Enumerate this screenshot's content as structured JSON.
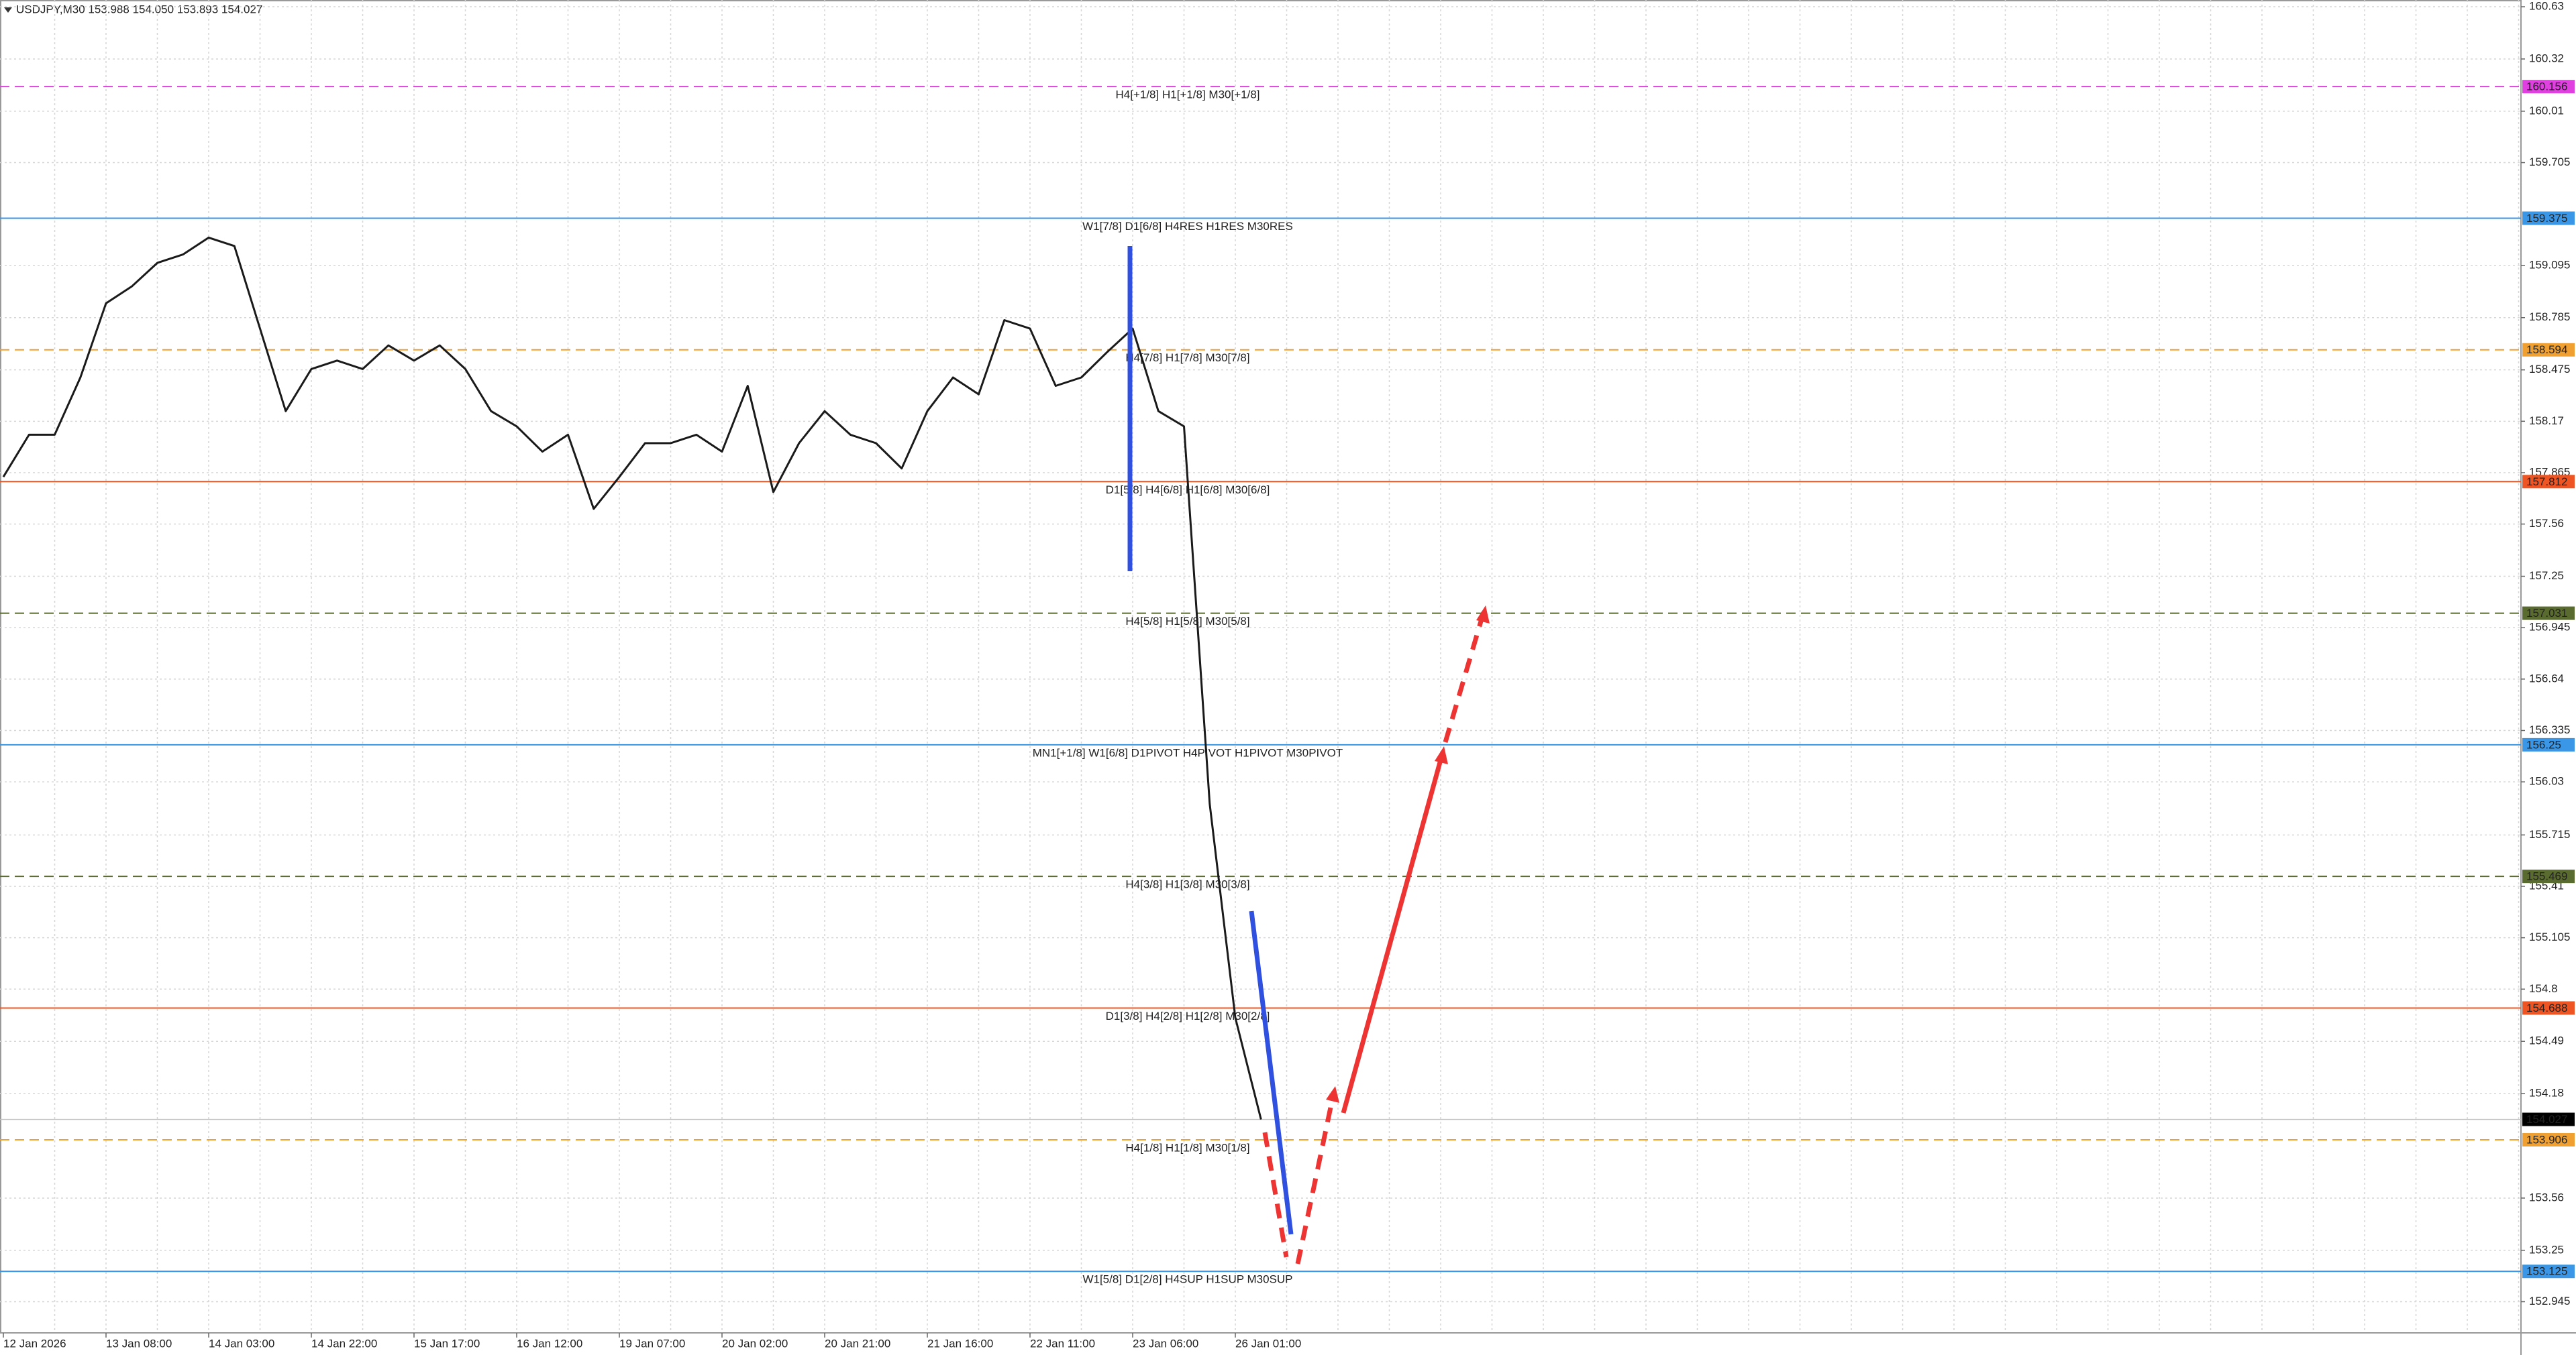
{
  "chart_data": {
    "type": "line",
    "title": "USDJPY,M30  153.988 154.050 153.893 154.027",
    "categories": [
      "12 Jan 2026",
      null,
      null,
      null,
      "13 Jan 08:00",
      null,
      null,
      null,
      "14 Jan 03:00",
      null,
      null,
      null,
      "14 Jan 22:00",
      null,
      null,
      null,
      "15 Jan 17:00",
      null,
      null,
      null,
      "16 Jan 12:00",
      null,
      null,
      null,
      "19 Jan 07:00",
      null,
      null,
      null,
      "20 Jan 02:00",
      null,
      null,
      null,
      "20 Jan 21:00",
      null,
      null,
      null,
      "21 Jan 16:00",
      null,
      null,
      null,
      "22 Jan 11:00",
      null,
      null,
      null,
      "23 Jan 06:00",
      null,
      null,
      null,
      "26 Jan 01:00",
      null
    ],
    "values": [
      157.84,
      158.09,
      158.09,
      158.43,
      158.87,
      158.97,
      159.11,
      159.16,
      159.26,
      159.21,
      158.72,
      158.23,
      158.48,
      158.53,
      158.48,
      158.62,
      158.53,
      158.62,
      158.48,
      158.23,
      158.14,
      157.99,
      158.09,
      157.65,
      157.84,
      158.04,
      158.04,
      158.09,
      157.99,
      158.38,
      157.75,
      158.04,
      158.23,
      158.09,
      158.04,
      157.89,
      158.23,
      158.43,
      158.33,
      158.77,
      158.72,
      158.38,
      158.43,
      158.58,
      158.72,
      158.23,
      158.14,
      155.9,
      154.63,
      154.027
    ],
    "color": "#1a1a1a",
    "ylim": [
      152.76,
      160.67
    ],
    "yticks": [
      160.63,
      160.32,
      160.01,
      159.705,
      159.095,
      158.785,
      158.475,
      158.17,
      157.865,
      157.56,
      157.25,
      156.945,
      156.64,
      156.335,
      156.03,
      155.715,
      155.41,
      155.105,
      154.8,
      154.49,
      154.18,
      153.56,
      153.25,
      152.945
    ],
    "grid": true,
    "last_price": 154.027,
    "levels": [
      {
        "value": 160.156,
        "label": "H4[+1/8] H1[+1/8] M30[+1/8]",
        "color": "#e040e0",
        "dashed": true
      },
      {
        "value": 159.375,
        "label": "W1[7/8] D1[6/8] H4RES H1RES M30RES",
        "color": "#3a96e6",
        "dashed": false
      },
      {
        "value": 158.594,
        "label": "H4[7/8] H1[7/8] M30[7/8]",
        "color": "#f0a030",
        "dashed": true
      },
      {
        "value": 157.812,
        "label": "D1[5/8] H4[6/8] H1[6/8] M30[6/8]",
        "color": "#ee5522",
        "dashed": false
      },
      {
        "value": 157.031,
        "label": "H4[5/8] H1[5/8] M30[5/8]",
        "color": "#5a6b30",
        "dashed": true
      },
      {
        "value": 156.25,
        "label": "MN1[+1/8] W1[6/8] D1PIVOT H4PIVOT H1PIVOT M30PIVOT",
        "color": "#3a96e6",
        "dashed": false
      },
      {
        "value": 155.469,
        "label": "H4[3/8] H1[3/8] M30[3/8]",
        "color": "#5a6b30",
        "dashed": true
      },
      {
        "value": 154.688,
        "label": "D1[3/8] H4[2/8] H1[2/8] M30[2/8]",
        "color": "#ee5522",
        "dashed": false
      },
      {
        "value": 153.906,
        "label": "H4[1/8] H1[1/8] M30[1/8]",
        "color": "#f0a030",
        "dashed": true
      },
      {
        "value": 153.125,
        "label": "W1[5/8] D1[2/8] H4SUP H1SUP M30SUP",
        "color": "#3a96e6",
        "dashed": false
      }
    ]
  }
}
